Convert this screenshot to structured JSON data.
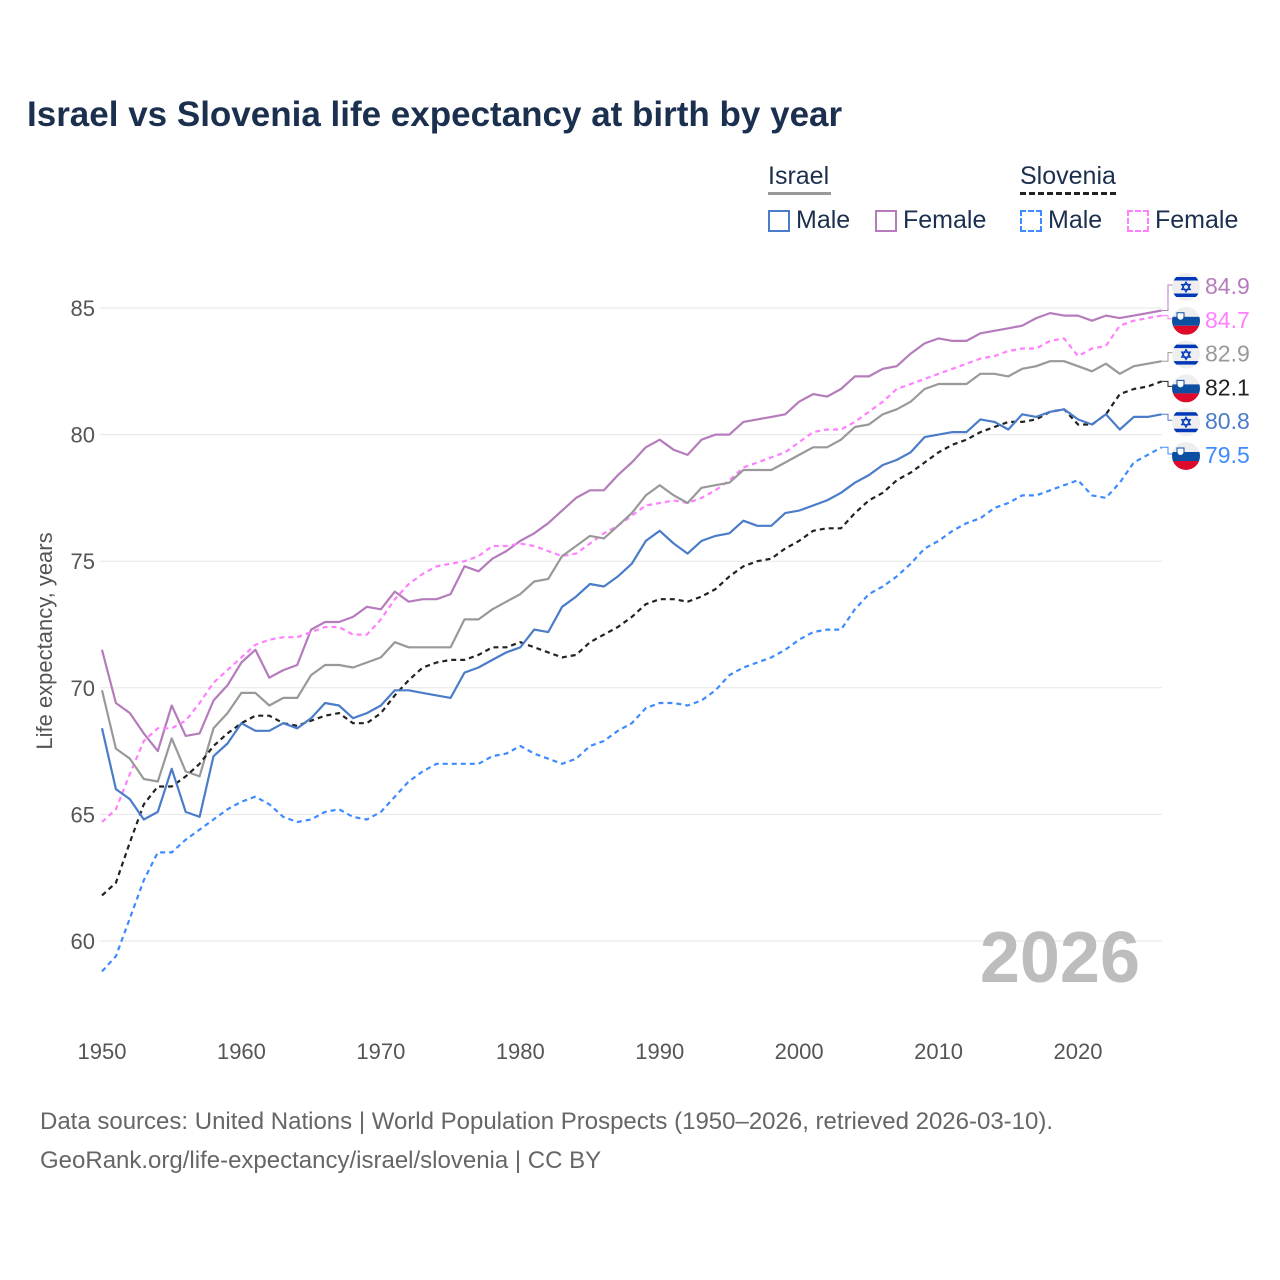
{
  "title": "Israel vs Slovenia life expectancy at birth by year",
  "legend": {
    "groups": [
      {
        "name": "Israel",
        "items": [
          "Male",
          "Female"
        ]
      },
      {
        "name": "Slovenia",
        "items": [
          "Male",
          "Female"
        ]
      }
    ]
  },
  "watermark_year": "2026",
  "sources": {
    "line1": "Data sources: United Nations | World Population Prospects (1950–2026, retrieved 2026-03-10).",
    "line2": "GeoRank.org/life-expectancy/israel/slovenia | CC BY"
  },
  "chart_data": {
    "type": "line",
    "title": "Israel vs Slovenia life expectancy at birth by year",
    "xlabel": "",
    "ylabel": "Life expectancy, years",
    "xlim": [
      1950,
      2026
    ],
    "ylim": [
      57,
      87
    ],
    "x_ticks": [
      "1950",
      "1960",
      "1970",
      "1980",
      "1990",
      "2000",
      "2010",
      "2020"
    ],
    "y_ticks": [
      "60",
      "65",
      "70",
      "75",
      "80",
      "85"
    ],
    "grid": true,
    "x_start": 1950,
    "series": [
      {
        "name": "Israel Female",
        "country": "Israel",
        "color": "#b57cbc",
        "dash": false,
        "end_label": "84.9",
        "values": [
          71.5,
          69.4,
          69.0,
          68.2,
          67.5,
          69.3,
          68.1,
          68.2,
          69.5,
          70.1,
          71.0,
          71.5,
          70.4,
          70.7,
          70.9,
          72.3,
          72.6,
          72.6,
          72.8,
          73.2,
          73.1,
          73.8,
          73.4,
          73.5,
          73.5,
          73.7,
          74.8,
          74.6,
          75.1,
          75.4,
          75.8,
          76.1,
          76.5,
          77.0,
          77.5,
          77.8,
          77.8,
          78.4,
          78.9,
          79.5,
          79.8,
          79.4,
          79.2,
          79.8,
          80.0,
          80.0,
          80.5,
          80.6,
          80.7,
          80.8,
          81.3,
          81.6,
          81.5,
          81.8,
          82.3,
          82.3,
          82.6,
          82.7,
          83.2,
          83.6,
          83.8,
          83.7,
          83.7,
          84.0,
          84.1,
          84.2,
          84.3,
          84.6,
          84.8,
          84.7,
          84.7,
          84.5,
          84.7,
          84.6,
          84.7,
          84.8,
          84.9
        ]
      },
      {
        "name": "Slovenia Female",
        "country": "Slovenia",
        "color": "#ff80ff",
        "dash": true,
        "end_label": "84.7",
        "values": [
          64.7,
          65.2,
          66.6,
          67.9,
          68.4,
          68.4,
          68.7,
          69.4,
          70.2,
          70.7,
          71.2,
          71.7,
          71.9,
          72.0,
          72.0,
          72.2,
          72.4,
          72.4,
          72.1,
          72.1,
          72.7,
          73.5,
          74.1,
          74.5,
          74.8,
          74.9,
          75.0,
          75.2,
          75.6,
          75.6,
          75.7,
          75.6,
          75.4,
          75.2,
          75.3,
          75.7,
          76.1,
          76.4,
          76.8,
          77.2,
          77.3,
          77.4,
          77.3,
          77.5,
          77.8,
          78.2,
          78.7,
          78.9,
          79.1,
          79.3,
          79.7,
          80.1,
          80.2,
          80.2,
          80.5,
          80.9,
          81.3,
          81.8,
          82.0,
          82.2,
          82.4,
          82.6,
          82.8,
          83.0,
          83.1,
          83.3,
          83.4,
          83.4,
          83.7,
          83.8,
          83.1,
          83.4,
          83.5,
          84.3,
          84.5,
          84.6,
          84.7
        ]
      },
      {
        "name": "Israel",
        "country": "Israel",
        "color": "#999999",
        "dash": false,
        "end_label": "82.9",
        "values": [
          69.9,
          67.6,
          67.2,
          66.4,
          66.3,
          68.0,
          66.7,
          66.5,
          68.4,
          69.0,
          69.8,
          69.8,
          69.3,
          69.6,
          69.6,
          70.5,
          70.9,
          70.9,
          70.8,
          71.0,
          71.2,
          71.8,
          71.6,
          71.6,
          71.6,
          71.6,
          72.7,
          72.7,
          73.1,
          73.4,
          73.7,
          74.2,
          74.3,
          75.2,
          75.6,
          76.0,
          75.9,
          76.4,
          76.9,
          77.6,
          78.0,
          77.6,
          77.3,
          77.9,
          78.0,
          78.1,
          78.6,
          78.6,
          78.6,
          78.9,
          79.2,
          79.5,
          79.5,
          79.8,
          80.3,
          80.4,
          80.8,
          81.0,
          81.3,
          81.8,
          82.0,
          82.0,
          82.0,
          82.4,
          82.4,
          82.3,
          82.6,
          82.7,
          82.9,
          82.9,
          82.7,
          82.5,
          82.8,
          82.4,
          82.7,
          82.8,
          82.9
        ]
      },
      {
        "name": "Slovenia",
        "country": "Slovenia",
        "color": "#222222",
        "dash": true,
        "end_label": "82.1",
        "values": [
          61.8,
          62.3,
          63.9,
          65.4,
          66.1,
          66.1,
          66.5,
          67.0,
          67.7,
          68.2,
          68.6,
          68.9,
          68.9,
          68.6,
          68.5,
          68.7,
          68.9,
          69.0,
          68.6,
          68.6,
          69.0,
          69.7,
          70.3,
          70.8,
          71.0,
          71.1,
          71.1,
          71.3,
          71.6,
          71.6,
          71.8,
          71.6,
          71.4,
          71.2,
          71.3,
          71.8,
          72.1,
          72.4,
          72.8,
          73.3,
          73.5,
          73.5,
          73.4,
          73.6,
          73.9,
          74.4,
          74.8,
          75.0,
          75.1,
          75.5,
          75.8,
          76.2,
          76.3,
          76.3,
          76.9,
          77.4,
          77.7,
          78.2,
          78.5,
          78.9,
          79.3,
          79.6,
          79.8,
          80.1,
          80.3,
          80.5,
          80.5,
          80.6,
          80.9,
          81.0,
          80.4,
          80.4,
          80.8,
          81.6,
          81.8,
          81.9,
          82.1
        ]
      },
      {
        "name": "Israel Male",
        "country": "Israel",
        "color": "#4a7cc9",
        "dash": false,
        "end_label": "80.8",
        "values": [
          68.4,
          66.0,
          65.6,
          64.8,
          65.1,
          66.8,
          65.1,
          64.9,
          67.3,
          67.8,
          68.6,
          68.3,
          68.3,
          68.6,
          68.4,
          68.8,
          69.4,
          69.3,
          68.8,
          69.0,
          69.3,
          69.9,
          69.9,
          69.8,
          69.7,
          69.6,
          70.6,
          70.8,
          71.1,
          71.4,
          71.6,
          72.3,
          72.2,
          73.2,
          73.6,
          74.1,
          74.0,
          74.4,
          74.9,
          75.8,
          76.2,
          75.7,
          75.3,
          75.8,
          76.0,
          76.1,
          76.6,
          76.4,
          76.4,
          76.9,
          77.0,
          77.2,
          77.4,
          77.7,
          78.1,
          78.4,
          78.8,
          79.0,
          79.3,
          79.9,
          80.0,
          80.1,
          80.1,
          80.6,
          80.5,
          80.2,
          80.8,
          80.7,
          80.9,
          81.0,
          80.6,
          80.4,
          80.8,
          80.2,
          80.7,
          80.7,
          80.8
        ]
      },
      {
        "name": "Slovenia Male",
        "country": "Slovenia",
        "color": "#3d8bff",
        "dash": true,
        "end_label": "79.5",
        "values": [
          58.8,
          59.4,
          60.9,
          62.4,
          63.5,
          63.5,
          64.0,
          64.4,
          64.8,
          65.2,
          65.5,
          65.7,
          65.4,
          64.9,
          64.7,
          64.8,
          65.1,
          65.2,
          64.9,
          64.8,
          65.1,
          65.7,
          66.3,
          66.7,
          67.0,
          67.0,
          67.0,
          67.0,
          67.3,
          67.4,
          67.7,
          67.4,
          67.2,
          67.0,
          67.2,
          67.7,
          67.9,
          68.3,
          68.6,
          69.2,
          69.4,
          69.4,
          69.3,
          69.5,
          69.9,
          70.5,
          70.8,
          71.0,
          71.2,
          71.5,
          71.9,
          72.2,
          72.3,
          72.3,
          73.1,
          73.7,
          74.0,
          74.4,
          74.9,
          75.5,
          75.8,
          76.2,
          76.5,
          76.7,
          77.1,
          77.3,
          77.6,
          77.6,
          77.8,
          78.0,
          78.2,
          77.6,
          77.5,
          78.1,
          78.9,
          79.2,
          79.5
        ]
      }
    ]
  }
}
